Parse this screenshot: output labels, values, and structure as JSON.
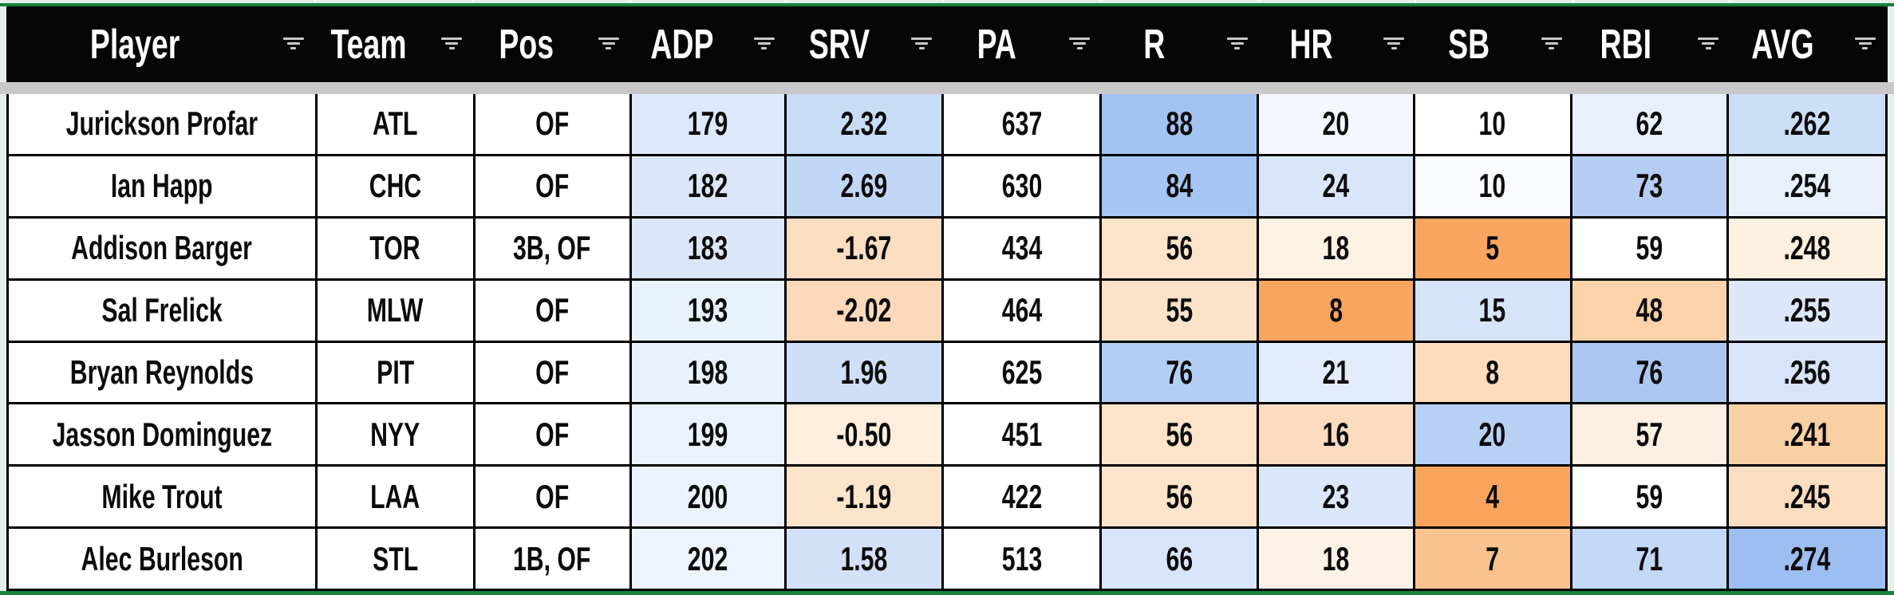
{
  "table": {
    "columns": [
      {
        "key": "player",
        "label": "Player"
      },
      {
        "key": "team",
        "label": "Team"
      },
      {
        "key": "pos",
        "label": "Pos"
      },
      {
        "key": "adp",
        "label": "ADP"
      },
      {
        "key": "srv",
        "label": "SRV"
      },
      {
        "key": "pa",
        "label": "PA"
      },
      {
        "key": "r",
        "label": "R"
      },
      {
        "key": "hr",
        "label": "HR"
      },
      {
        "key": "sb",
        "label": "SB"
      },
      {
        "key": "rbi",
        "label": "RBI"
      },
      {
        "key": "avg",
        "label": "AVG"
      }
    ],
    "rows": [
      {
        "cells": [
          {
            "v": "Jurickson Profar",
            "bg": "#ffffff"
          },
          {
            "v": "ATL",
            "bg": "#ffffff"
          },
          {
            "v": "OF",
            "bg": "#ffffff"
          },
          {
            "v": "179",
            "bg": "#dde8fa"
          },
          {
            "v": "2.32",
            "bg": "#c9dcf6"
          },
          {
            "v": "637",
            "bg": "#ffffff"
          },
          {
            "v": "88",
            "bg": "#a3c4f3"
          },
          {
            "v": "20",
            "bg": "#f4f8fe"
          },
          {
            "v": "10",
            "bg": "#ffffff"
          },
          {
            "v": "62",
            "bg": "#e9f0fc"
          },
          {
            "v": ".262",
            "bg": "#cddef7"
          }
        ]
      },
      {
        "cells": [
          {
            "v": "Ian Happ",
            "bg": "#ffffff"
          },
          {
            "v": "CHC",
            "bg": "#ffffff"
          },
          {
            "v": "OF",
            "bg": "#ffffff"
          },
          {
            "v": "182",
            "bg": "#dbe7f9"
          },
          {
            "v": "2.69",
            "bg": "#c2d6f5"
          },
          {
            "v": "630",
            "bg": "#ffffff"
          },
          {
            "v": "84",
            "bg": "#a6c5f3"
          },
          {
            "v": "24",
            "bg": "#d9e6fa"
          },
          {
            "v": "10",
            "bg": "#fbfcff"
          },
          {
            "v": "73",
            "bg": "#b6cdf3"
          },
          {
            "v": ".254",
            "bg": "#e9f0fc"
          }
        ]
      },
      {
        "cells": [
          {
            "v": "Addison Barger",
            "bg": "#ffffff"
          },
          {
            "v": "TOR",
            "bg": "#ffffff"
          },
          {
            "v": "3B, OF",
            "bg": "#ffffff"
          },
          {
            "v": "183",
            "bg": "#dbe7f9"
          },
          {
            "v": "-1.67",
            "bg": "#fbddc1"
          },
          {
            "v": "434",
            "bg": "#ffffff"
          },
          {
            "v": "56",
            "bg": "#fce3c9"
          },
          {
            "v": "18",
            "bg": "#fdf1e3"
          },
          {
            "v": "5",
            "bg": "#f8a55f"
          },
          {
            "v": "59",
            "bg": "#ffffff"
          },
          {
            "v": ".248",
            "bg": "#fdf0e0"
          }
        ]
      },
      {
        "cells": [
          {
            "v": "Sal Frelick",
            "bg": "#ffffff"
          },
          {
            "v": "MLW",
            "bg": "#ffffff"
          },
          {
            "v": "OF",
            "bg": "#ffffff"
          },
          {
            "v": "193",
            "bg": "#e9f1fc"
          },
          {
            "v": "-2.02",
            "bg": "#fbd9ba"
          },
          {
            "v": "464",
            "bg": "#ffffff"
          },
          {
            "v": "55",
            "bg": "#fce2c8"
          },
          {
            "v": "8",
            "bg": "#f8a55f"
          },
          {
            "v": "15",
            "bg": "#d6e4f9"
          },
          {
            "v": "48",
            "bg": "#fbd2a9"
          },
          {
            "v": ".255",
            "bg": "#dce8fa"
          }
        ]
      },
      {
        "cells": [
          {
            "v": "Bryan Reynolds",
            "bg": "#ffffff"
          },
          {
            "v": "PIT",
            "bg": "#ffffff"
          },
          {
            "v": "OF",
            "bg": "#ffffff"
          },
          {
            "v": "198",
            "bg": "#eaf1fc"
          },
          {
            "v": "1.96",
            "bg": "#cfdff8"
          },
          {
            "v": "625",
            "bg": "#ffffff"
          },
          {
            "v": "76",
            "bg": "#b3cef4"
          },
          {
            "v": "21",
            "bg": "#e4ecfb"
          },
          {
            "v": "8",
            "bg": "#fcdcbd"
          },
          {
            "v": "76",
            "bg": "#abc7f1"
          },
          {
            "v": ".256",
            "bg": "#d7e4f9"
          }
        ]
      },
      {
        "cells": [
          {
            "v": "Jasson Dominguez",
            "bg": "#ffffff"
          },
          {
            "v": "NYY",
            "bg": "#ffffff"
          },
          {
            "v": "OF",
            "bg": "#ffffff"
          },
          {
            "v": "199",
            "bg": "#ebf2fd"
          },
          {
            "v": "-0.50",
            "bg": "#fdeedd"
          },
          {
            "v": "451",
            "bg": "#ffffff"
          },
          {
            "v": "56",
            "bg": "#fce3c9"
          },
          {
            "v": "16",
            "bg": "#fbdcc0"
          },
          {
            "v": "20",
            "bg": "#b8d0f4"
          },
          {
            "v": "57",
            "bg": "#fdf0e2"
          },
          {
            "v": ".241",
            "bg": "#f9cfa4"
          }
        ]
      },
      {
        "cells": [
          {
            "v": "Mike Trout",
            "bg": "#ffffff"
          },
          {
            "v": "LAA",
            "bg": "#ffffff"
          },
          {
            "v": "OF",
            "bg": "#ffffff"
          },
          {
            "v": "200",
            "bg": "#ecf2fd"
          },
          {
            "v": "-1.19",
            "bg": "#fce4cb"
          },
          {
            "v": "422",
            "bg": "#ffffff"
          },
          {
            "v": "56",
            "bg": "#fce3c9"
          },
          {
            "v": "23",
            "bg": "#dbe7fa"
          },
          {
            "v": "4",
            "bg": "#f8a45c"
          },
          {
            "v": "59",
            "bg": "#ffffff"
          },
          {
            "v": ".245",
            "bg": "#fbddc2"
          }
        ]
      },
      {
        "cells": [
          {
            "v": "Alec Burleson",
            "bg": "#ffffff"
          },
          {
            "v": "STL",
            "bg": "#ffffff"
          },
          {
            "v": "1B, OF",
            "bg": "#ffffff"
          },
          {
            "v": "202",
            "bg": "#eef4fd"
          },
          {
            "v": "1.58",
            "bg": "#d3e1f8"
          },
          {
            "v": "513",
            "bg": "#ffffff"
          },
          {
            "v": "66",
            "bg": "#d7e4fa"
          },
          {
            "v": "18",
            "bg": "#fdf2e6"
          },
          {
            "v": "7",
            "bg": "#f9c28e"
          },
          {
            "v": "71",
            "bg": "#c3d7f6"
          },
          {
            "v": ".274",
            "bg": "#9cbef0"
          }
        ]
      }
    ]
  },
  "colors": {
    "header_bg": "#060606",
    "header_text": "#ffffff",
    "grid_border": "#000000",
    "divider_gray": "#c8c8c8",
    "sheet_green": "#17803c",
    "margin_green": "#e7efe8",
    "filter_icon_gray": "#c9c9c9",
    "heat_high_blue": "#9cbef0",
    "heat_low_orange": "#f8a45c"
  }
}
